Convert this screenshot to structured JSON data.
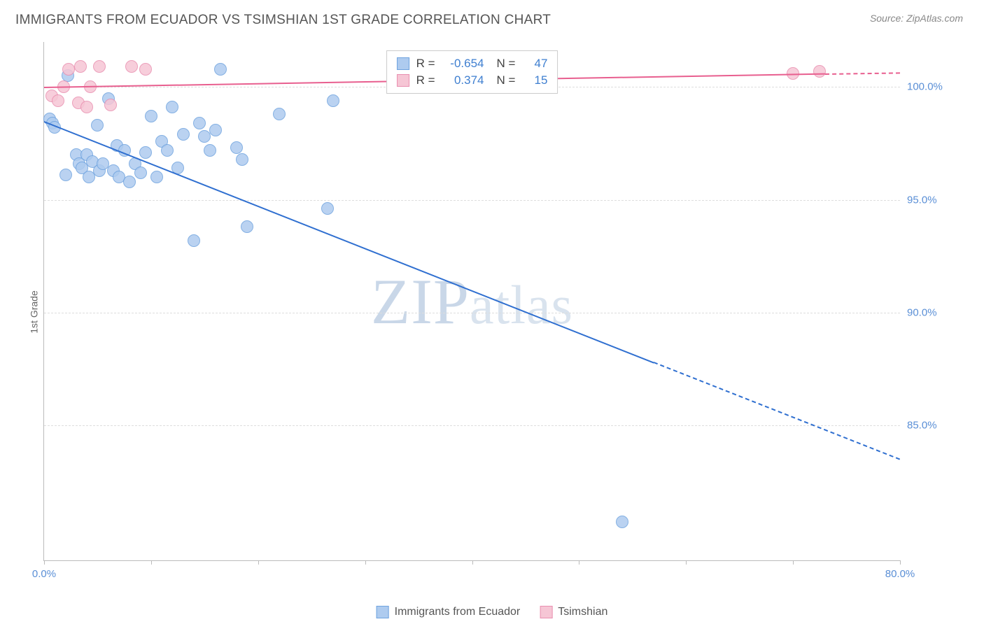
{
  "header": {
    "title": "IMMIGRANTS FROM ECUADOR VS TSIMSHIAN 1ST GRADE CORRELATION CHART",
    "source": "Source: ZipAtlas.com"
  },
  "watermark": "ZIPatlas",
  "ylabel": "1st Grade",
  "chart": {
    "type": "scatter",
    "xlim": [
      0,
      80
    ],
    "ylim": [
      79,
      102
    ],
    "xticks": [
      0,
      10,
      20,
      30,
      40,
      50,
      60,
      70,
      80
    ],
    "xtick_labels": {
      "0": "0.0%",
      "80": "80.0%"
    },
    "yticks": [
      85,
      90,
      95,
      100
    ],
    "ytick_labels": [
      "85.0%",
      "90.0%",
      "95.0%",
      "100.0%"
    ],
    "grid_color": "#dddddd",
    "axis_color": "#bbbbbb",
    "background_color": "#ffffff",
    "tick_label_color": "#5a8fd6",
    "series": [
      {
        "name": "Immigrants from Ecuador",
        "color_fill": "#aecbef",
        "color_stroke": "#6fa3df",
        "trend_color": "#2f6fd0",
        "marker_radius": 9,
        "R": "-0.654",
        "N": "47",
        "trend": {
          "x1": 0,
          "y1": 98.5,
          "x2": 57,
          "y2": 87.8,
          "dash_x2": 80,
          "dash_y2": 83.5
        },
        "points": [
          [
            0.5,
            98.6
          ],
          [
            0.8,
            98.4
          ],
          [
            1.0,
            98.2
          ],
          [
            2.0,
            96.1
          ],
          [
            2.2,
            100.5
          ],
          [
            3.0,
            97.0
          ],
          [
            3.3,
            96.6
          ],
          [
            3.5,
            96.4
          ],
          [
            4.0,
            97.0
          ],
          [
            4.2,
            96.0
          ],
          [
            4.5,
            96.7
          ],
          [
            5.0,
            98.3
          ],
          [
            5.2,
            96.3
          ],
          [
            5.5,
            96.6
          ],
          [
            6.0,
            99.5
          ],
          [
            6.5,
            96.3
          ],
          [
            6.8,
            97.4
          ],
          [
            7.0,
            96.0
          ],
          [
            7.5,
            97.2
          ],
          [
            8.0,
            95.8
          ],
          [
            8.5,
            96.6
          ],
          [
            9.0,
            96.2
          ],
          [
            9.5,
            97.1
          ],
          [
            10.0,
            98.7
          ],
          [
            10.5,
            96.0
          ],
          [
            11.0,
            97.6
          ],
          [
            11.5,
            97.2
          ],
          [
            12.0,
            99.1
          ],
          [
            12.5,
            96.4
          ],
          [
            13.0,
            97.9
          ],
          [
            14.0,
            93.2
          ],
          [
            14.5,
            98.4
          ],
          [
            15.0,
            97.8
          ],
          [
            15.5,
            97.2
          ],
          [
            16.0,
            98.1
          ],
          [
            16.5,
            100.8
          ],
          [
            18.0,
            97.3
          ],
          [
            18.5,
            96.8
          ],
          [
            19.0,
            93.8
          ],
          [
            22.0,
            98.8
          ],
          [
            26.5,
            94.6
          ],
          [
            27.0,
            99.4
          ],
          [
            54.0,
            80.7
          ]
        ]
      },
      {
        "name": "Tsimshian",
        "color_fill": "#f6c6d5",
        "color_stroke": "#e98fb0",
        "trend_color": "#e85f8f",
        "marker_radius": 9,
        "R": "0.374",
        "N": "15",
        "trend": {
          "x1": 0,
          "y1": 100.0,
          "x2": 73,
          "y2": 100.6,
          "dash_x2": 80,
          "dash_y2": 100.65
        },
        "points": [
          [
            0.7,
            99.6
          ],
          [
            1.3,
            99.4
          ],
          [
            1.8,
            100.0
          ],
          [
            2.3,
            100.8
          ],
          [
            3.2,
            99.3
          ],
          [
            3.4,
            100.9
          ],
          [
            4.0,
            99.1
          ],
          [
            4.3,
            100.0
          ],
          [
            5.2,
            100.9
          ],
          [
            6.2,
            99.2
          ],
          [
            8.2,
            100.9
          ],
          [
            9.5,
            100.8
          ],
          [
            70.0,
            100.6
          ],
          [
            72.5,
            100.7
          ]
        ]
      }
    ]
  },
  "legend_bottom": [
    {
      "label": "Immigrants from Ecuador",
      "fill": "#aecbef",
      "stroke": "#6fa3df"
    },
    {
      "label": "Tsimshian",
      "fill": "#f6c6d5",
      "stroke": "#e98fb0"
    }
  ]
}
